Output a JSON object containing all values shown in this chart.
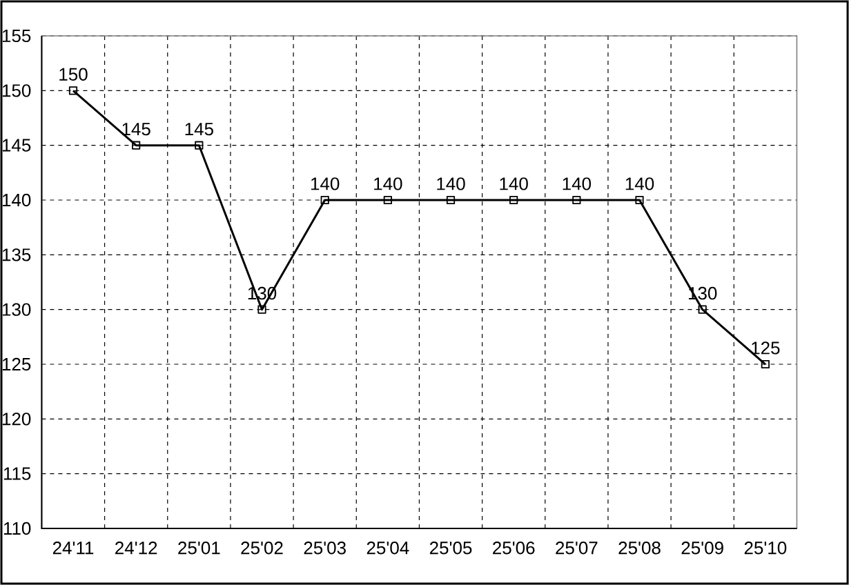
{
  "chart_data": {
    "type": "line",
    "categories": [
      "24'11",
      "24'12",
      "25'01",
      "25'02",
      "25'03",
      "25'04",
      "25'05",
      "25'06",
      "25'07",
      "25'08",
      "25'09",
      "25'10"
    ],
    "values": [
      150,
      145,
      145,
      130,
      140,
      140,
      140,
      140,
      140,
      140,
      130,
      125
    ],
    "color": "#000000",
    "marker": "square",
    "line_style": "solid",
    "data_labels": true,
    "grid": true,
    "ylim": [
      110,
      155
    ],
    "yticks": [
      110,
      115,
      120,
      125,
      130,
      135,
      140,
      145,
      150,
      155
    ]
  }
}
